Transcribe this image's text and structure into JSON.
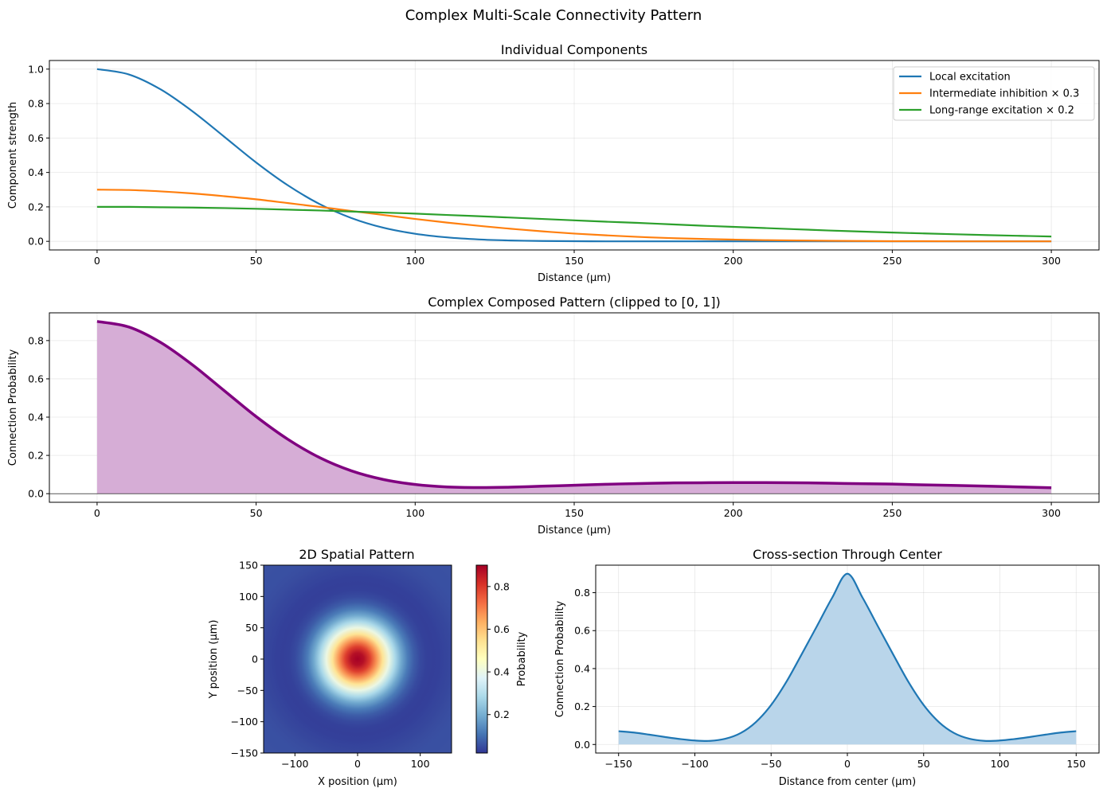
{
  "figure": {
    "title": "Complex Multi-Scale Connectivity Pattern"
  },
  "panels": {
    "components": {
      "title": "Individual Components",
      "xlabel": "Distance (μm)",
      "ylabel": "Component strength",
      "xticks": [
        "0",
        "50",
        "100",
        "150",
        "200",
        "250",
        "300"
      ],
      "yticks": [
        "0.0",
        "0.2",
        "0.4",
        "0.6",
        "0.8",
        "1.0"
      ]
    },
    "composed": {
      "title": "Complex Composed Pattern (clipped to [0, 1])",
      "xlabel": "Distance (μm)",
      "ylabel": "Connection Probability",
      "xticks": [
        "0",
        "50",
        "100",
        "150",
        "200",
        "250",
        "300"
      ],
      "yticks": [
        "0.0",
        "0.2",
        "0.4",
        "0.6",
        "0.8"
      ]
    },
    "spatial": {
      "title": "2D Spatial Pattern",
      "xlabel": "X position (μm)",
      "ylabel": "Y position (μm)",
      "xticks": [
        "−100",
        "0",
        "100"
      ],
      "yticks": [
        "−150",
        "−100",
        "−50",
        "0",
        "50",
        "100",
        "150"
      ],
      "colorbar_label": "Probability",
      "colorbar_ticks": [
        "0.2",
        "0.4",
        "0.6",
        "0.8"
      ]
    },
    "cross": {
      "title": "Cross-section Through Center",
      "xlabel": "Distance from center (μm)",
      "ylabel": "Connection Probability",
      "xticks": [
        "−150",
        "−100",
        "−50",
        "0",
        "50",
        "100",
        "150"
      ],
      "yticks": [
        "0.0",
        "0.2",
        "0.4",
        "0.6",
        "0.8"
      ]
    }
  },
  "chart_data": [
    {
      "type": "line",
      "title": "Individual Components",
      "xlabel": "Distance (μm)",
      "ylabel": "Component strength",
      "xlim": [
        -15,
        315
      ],
      "ylim": [
        -0.05,
        1.05
      ],
      "grid": true,
      "legend": "top-right",
      "x": [
        0,
        10,
        20,
        30,
        40,
        50,
        60,
        70,
        80,
        90,
        100,
        110,
        120,
        130,
        140,
        150,
        160,
        170,
        180,
        190,
        200,
        210,
        220,
        230,
        240,
        250,
        260,
        270,
        280,
        290,
        300
      ],
      "series": [
        {
          "name": "Local excitation",
          "color": "#1f77b4",
          "values": [
            1.0,
            0.969,
            0.882,
            0.755,
            0.607,
            0.458,
            0.325,
            0.216,
            0.135,
            0.079,
            0.044,
            0.023,
            0.011,
            0.005,
            0.002,
            0.001,
            0.0,
            0.0,
            0.0,
            0.0,
            0.0,
            0.0,
            0.0,
            0.0,
            0.0,
            0.0,
            0.0,
            0.0,
            0.0,
            0.0,
            0.0
          ]
        },
        {
          "name": "Intermediate inhibition × 0.3",
          "color": "#ff7f0e",
          "values": [
            0.3,
            0.298,
            0.29,
            0.278,
            0.262,
            0.244,
            0.222,
            0.2,
            0.176,
            0.153,
            0.13,
            0.109,
            0.09,
            0.073,
            0.058,
            0.045,
            0.035,
            0.026,
            0.019,
            0.014,
            0.01,
            0.007,
            0.005,
            0.003,
            0.002,
            0.001,
            0.001,
            0.0,
            0.0,
            0.0,
            0.0
          ]
        },
        {
          "name": "Long-range excitation × 0.2",
          "color": "#2ca02c",
          "values": [
            0.2,
            0.2,
            0.198,
            0.196,
            0.193,
            0.189,
            0.184,
            0.179,
            0.173,
            0.167,
            0.161,
            0.153,
            0.146,
            0.138,
            0.13,
            0.122,
            0.114,
            0.107,
            0.099,
            0.091,
            0.084,
            0.077,
            0.07,
            0.063,
            0.057,
            0.051,
            0.046,
            0.041,
            0.036,
            0.032,
            0.028
          ]
        }
      ]
    },
    {
      "type": "area",
      "title": "Complex Composed Pattern (clipped to [0, 1])",
      "xlabel": "Distance (μm)",
      "ylabel": "Connection Probability",
      "xlim": [
        -15,
        315
      ],
      "ylim": [
        -0.045,
        0.945
      ],
      "grid": true,
      "x": [
        0,
        10,
        20,
        30,
        40,
        50,
        60,
        70,
        80,
        90,
        100,
        110,
        120,
        130,
        140,
        150,
        160,
        170,
        180,
        190,
        200,
        210,
        220,
        230,
        240,
        250,
        260,
        270,
        280,
        290,
        300
      ],
      "series": [
        {
          "name": "",
          "color": "#800080",
          "fill": "#d6add6",
          "values": [
            0.9,
            0.871,
            0.79,
            0.673,
            0.538,
            0.403,
            0.284,
            0.188,
            0.119,
            0.074,
            0.048,
            0.035,
            0.032,
            0.034,
            0.039,
            0.044,
            0.049,
            0.053,
            0.056,
            0.057,
            0.058,
            0.058,
            0.057,
            0.055,
            0.052,
            0.05,
            0.046,
            0.043,
            0.039,
            0.035,
            0.031
          ]
        }
      ]
    },
    {
      "type": "heatmap",
      "title": "2D Spatial Pattern",
      "xlabel": "X position (μm)",
      "ylabel": "Y position (μm)",
      "xlim": [
        -150,
        150
      ],
      "ylim": [
        -150,
        150
      ],
      "colormap": "RdYlBu_r",
      "colorbar_label": "Probability",
      "colorbar_range": [
        0.02,
        0.9
      ],
      "radial_profile": {
        "r": [
          0,
          10,
          20,
          30,
          40,
          50,
          60,
          70,
          80,
          90,
          100,
          110,
          120,
          130,
          140,
          150,
          160,
          170,
          180,
          190,
          200,
          210,
          220
        ],
        "values": [
          0.9,
          0.871,
          0.79,
          0.673,
          0.538,
          0.403,
          0.284,
          0.188,
          0.119,
          0.074,
          0.048,
          0.035,
          0.032,
          0.034,
          0.039,
          0.044,
          0.049,
          0.053,
          0.056,
          0.057,
          0.058,
          0.058,
          0.057
        ]
      }
    },
    {
      "type": "area",
      "title": "Cross-section Through Center",
      "xlabel": "Distance from center (μm)",
      "ylabel": "Connection Probability",
      "xlim": [
        -165,
        165
      ],
      "ylim": [
        -0.045,
        0.945
      ],
      "grid": true,
      "x": [
        -150,
        -140,
        -130,
        -120,
        -110,
        -100,
        -90,
        -80,
        -70,
        -60,
        -50,
        -40,
        -30,
        -20,
        -10,
        0,
        10,
        20,
        30,
        40,
        50,
        60,
        70,
        80,
        90,
        100,
        110,
        120,
        130,
        140,
        150
      ],
      "series": [
        {
          "name": "",
          "color": "#1f77b4",
          "fill": "#b9d5ea",
          "values": [
            0.07,
            0.063,
            0.052,
            0.04,
            0.029,
            0.021,
            0.019,
            0.03,
            0.06,
            0.118,
            0.208,
            0.33,
            0.475,
            0.623,
            0.773,
            0.9,
            0.773,
            0.623,
            0.475,
            0.33,
            0.208,
            0.118,
            0.06,
            0.03,
            0.019,
            0.021,
            0.029,
            0.04,
            0.052,
            0.063,
            0.07
          ]
        }
      ]
    }
  ]
}
